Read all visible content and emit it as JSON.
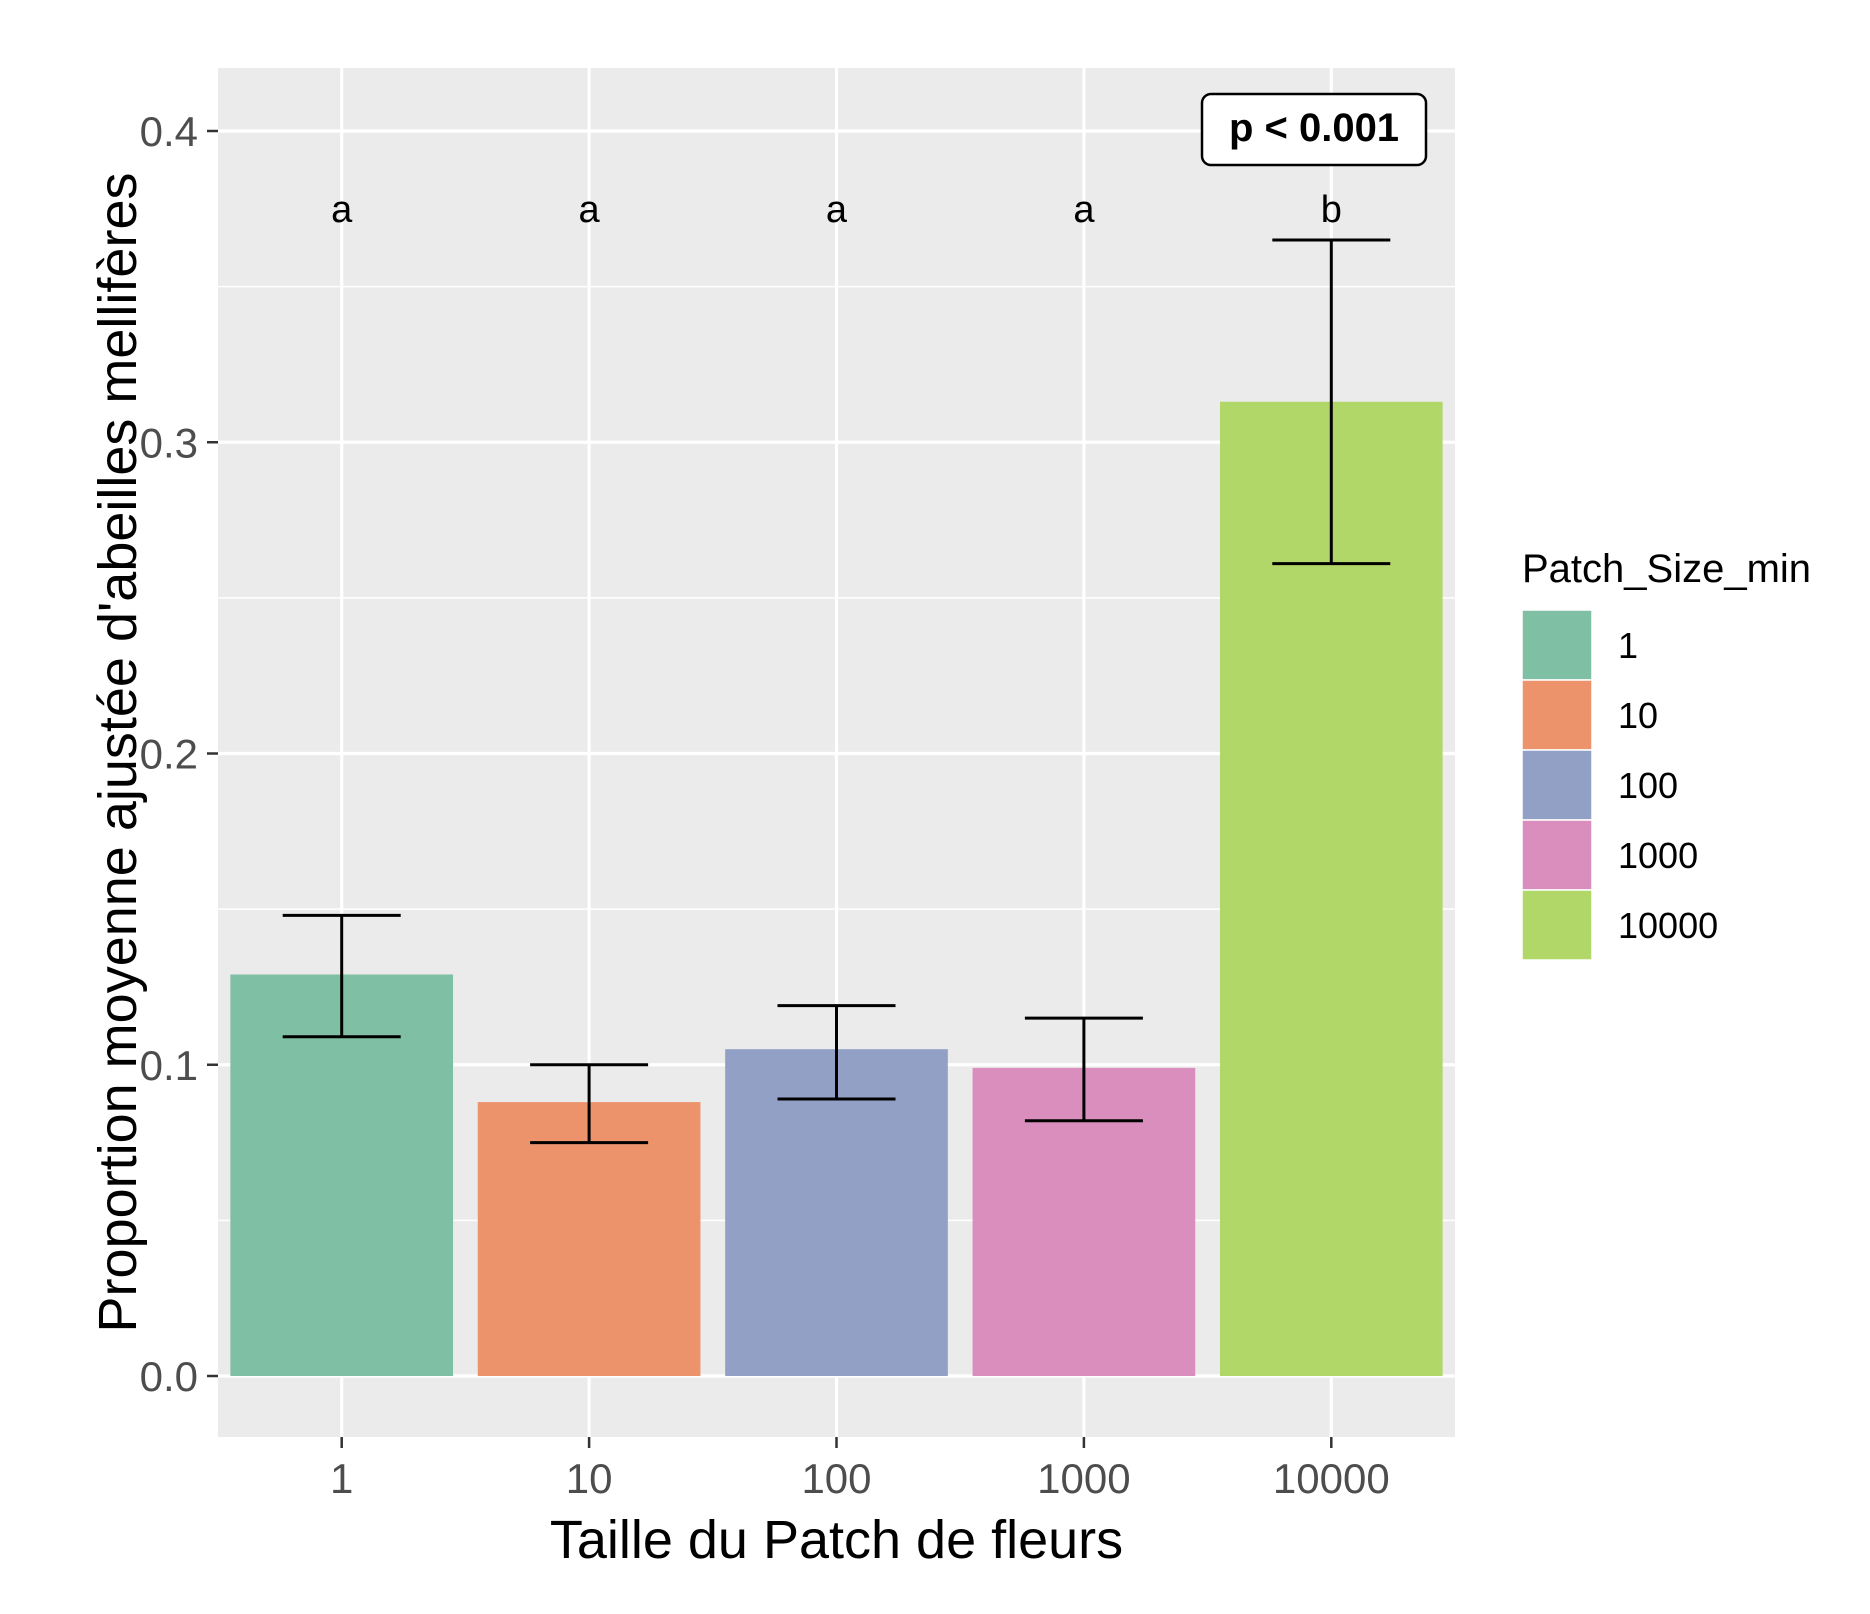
{
  "chart_data": {
    "type": "bar",
    "categories": [
      "1",
      "10",
      "100",
      "1000",
      "10000"
    ],
    "values": [
      0.129,
      0.088,
      0.105,
      0.099,
      0.313
    ],
    "error_lower": [
      0.109,
      0.075,
      0.089,
      0.082,
      0.261
    ],
    "error_upper": [
      0.148,
      0.1,
      0.119,
      0.115,
      0.365
    ],
    "colors": [
      "#7fbfa4",
      "#ec936c",
      "#92a0c6",
      "#d98ebd",
      "#b2d769"
    ],
    "significance_letters": [
      "a",
      "a",
      "a",
      "a",
      "b"
    ],
    "annotation": "p < 0.001",
    "xlabel": "Taille du Patch de fleurs",
    "ylabel": "Proportion moyenne ajustée d'abeilles mellifères",
    "ylim": [
      -0.02,
      0.415
    ],
    "yticks": [
      0.0,
      0.1,
      0.2,
      0.3,
      0.4
    ],
    "ytick_labels": [
      "0.0",
      "0.1",
      "0.2",
      "0.3",
      "0.4"
    ],
    "grid": true,
    "legend": {
      "title": "Patch_Size_min",
      "position": "right",
      "items": [
        "1",
        "10",
        "100",
        "1000",
        "10000"
      ]
    }
  }
}
